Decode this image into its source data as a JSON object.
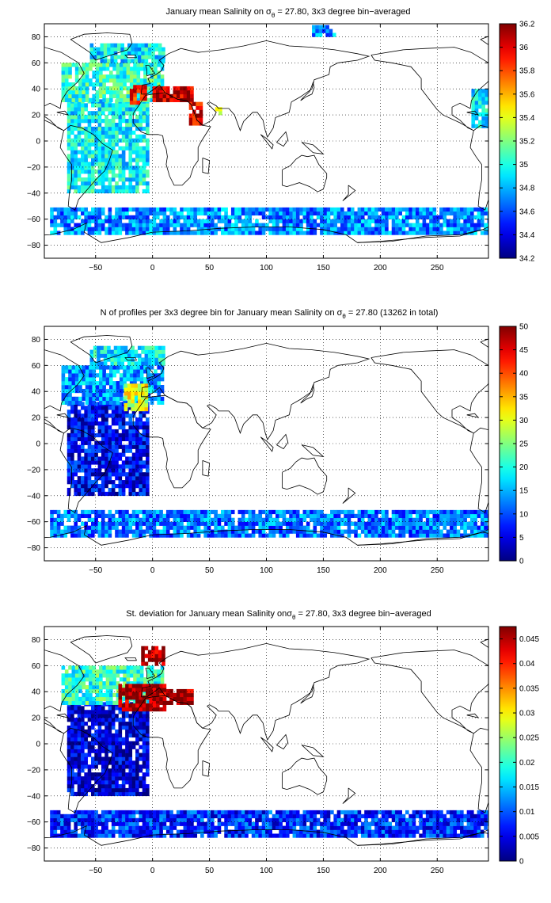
{
  "figure": {
    "title_parts": [
      {
        "prefix": "January mean Salinity on ",
        "sym": "σ",
        "sub": "θ",
        "suffix": " = 27.80, 3x3 degree bin−averaged"
      },
      {
        "prefix": "N of profiles per 3x3 degree bin for January mean Salinity on ",
        "sym": "σ",
        "sub": "θ",
        "suffix": " = 27.80 (13262 in total)"
      },
      {
        "prefix": "St. deviation for January mean Salinity on",
        "sym": "σ",
        "sub": "θ",
        "suffix": " = 27.80, 3x3 degree bin−averaged"
      }
    ]
  },
  "chart_data": [
    {
      "type": "heatmap",
      "title": "January mean Salinity on σθ = 27.80, 3x3 degree bin−averaged",
      "xlim": [
        -95,
        295
      ],
      "ylim": [
        -90,
        90
      ],
      "xticks": [
        -50,
        0,
        50,
        100,
        150,
        200,
        250
      ],
      "yticks": [
        -80,
        -60,
        -40,
        -20,
        0,
        20,
        40,
        60,
        80
      ],
      "grid": true,
      "colorbar": {
        "min": 34.2,
        "max": 36.2,
        "ticks": [
          34.2,
          34.4,
          34.6,
          34.8,
          35,
          35.2,
          35.4,
          35.6,
          35.8,
          36,
          36.2
        ],
        "colormap": "jet"
      },
      "bin_size_deg": 3,
      "regions": [
        {
          "lon": [
            -75,
            -5
          ],
          "lat": [
            -40,
            30
          ],
          "value": 34.95
        },
        {
          "lon": [
            -80,
            10
          ],
          "lat": [
            30,
            60
          ],
          "value": 35.05
        },
        {
          "lon": [
            -55,
            10
          ],
          "lat": [
            60,
            75
          ],
          "value": 34.92
        },
        {
          "lon": [
            -20,
            -5
          ],
          "lat": [
            28,
            42
          ],
          "value": 35.9
        },
        {
          "lon": [
            0,
            35
          ],
          "lat": [
            30,
            42
          ],
          "value": 36.1
        },
        {
          "lon": [
            32,
            44
          ],
          "lat": [
            12,
            30
          ],
          "value": 36.0
        },
        {
          "lon": [
            55,
            60
          ],
          "lat": [
            20,
            26
          ],
          "value": 35.5
        },
        {
          "lon": [
            -90,
            295
          ],
          "lat": [
            -72,
            -52
          ],
          "value": 34.72
        },
        {
          "lon": [
            280,
            295
          ],
          "lat": [
            10,
            38
          ],
          "value": 34.95
        },
        {
          "lon": [
            140,
            160
          ],
          "lat": [
            80,
            88
          ],
          "value": 34.72
        }
      ]
    },
    {
      "type": "heatmap",
      "title": "N of profiles per 3x3 degree bin for January mean Salinity on σθ = 27.80 (13262 in total)",
      "xlim": [
        -95,
        295
      ],
      "ylim": [
        -90,
        90
      ],
      "xticks": [
        -50,
        0,
        50,
        100,
        150,
        200,
        250
      ],
      "yticks": [
        -80,
        -60,
        -40,
        -20,
        0,
        20,
        40,
        60,
        80
      ],
      "grid": true,
      "colorbar": {
        "min": 0,
        "max": 50,
        "ticks": [
          0,
          5,
          10,
          15,
          20,
          25,
          30,
          35,
          40,
          45,
          50
        ],
        "colormap": "jet"
      },
      "total_profiles": 13262,
      "regions": [
        {
          "lon": [
            -75,
            -5
          ],
          "lat": [
            -40,
            30
          ],
          "value": 6
        },
        {
          "lon": [
            -80,
            10
          ],
          "lat": [
            30,
            60
          ],
          "value": 14
        },
        {
          "lon": [
            -55,
            10
          ],
          "lat": [
            60,
            75
          ],
          "value": 18
        },
        {
          "lon": [
            -25,
            -5
          ],
          "lat": [
            25,
            45
          ],
          "value": 30
        },
        {
          "lon": [
            -90,
            295
          ],
          "lat": [
            -72,
            -52
          ],
          "value": 12
        }
      ]
    },
    {
      "type": "heatmap",
      "title": "St. deviation for January mean Salinity on σθ = 27.80, 3x3 degree bin−averaged",
      "xlim": [
        -95,
        295
      ],
      "ylim": [
        -90,
        90
      ],
      "xticks": [
        -50,
        0,
        50,
        100,
        150,
        200,
        250
      ],
      "yticks": [
        -80,
        -60,
        -40,
        -20,
        0,
        20,
        40,
        60,
        80
      ],
      "grid": true,
      "colorbar": {
        "min": 0,
        "max": 0.0475,
        "ticks": [
          0,
          0.005,
          0.01,
          0.015,
          0.02,
          0.025,
          0.03,
          0.035,
          0.04,
          0.045
        ],
        "colormap": "jet"
      },
      "regions": [
        {
          "lon": [
            -75,
            -5
          ],
          "lat": [
            -40,
            30
          ],
          "value": 0.004
        },
        {
          "lon": [
            -80,
            10
          ],
          "lat": [
            30,
            60
          ],
          "value": 0.02
        },
        {
          "lon": [
            -30,
            10
          ],
          "lat": [
            25,
            45
          ],
          "value": 0.046
        },
        {
          "lon": [
            -10,
            10
          ],
          "lat": [
            60,
            75
          ],
          "value": 0.046
        },
        {
          "lon": [
            0,
            35
          ],
          "lat": [
            30,
            42
          ],
          "value": 0.046
        },
        {
          "lon": [
            -90,
            295
          ],
          "lat": [
            -72,
            -52
          ],
          "value": 0.008
        }
      ]
    }
  ]
}
